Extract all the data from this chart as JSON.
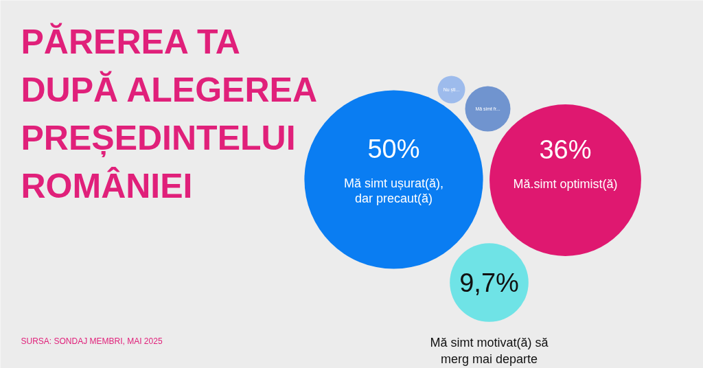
{
  "chart_data": {
    "type": "other",
    "title": "PĂREREA TA DUPĂ ALEGEREA PREȘEDINTELUI ROMÂNIEI",
    "categories": [
      "Mă simt ușurat(ă), dar precaut(ă)",
      "Mă.simt optimist(ă)",
      "Mă simt motivat(ă) să merg mai departe",
      "Mă simt fr...",
      "Nu ști..."
    ],
    "values": [
      50,
      36,
      9.7,
      null,
      null
    ],
    "value_labels": [
      "50%",
      "36%",
      "9,7%",
      null,
      null
    ],
    "colors": [
      "#0a7df2",
      "#df1870",
      "#6fe3e6",
      "#7094cf",
      "#9dbbec"
    ],
    "annotations": [
      "SURSA: SONDAJ MEMBRI, MAI 2025"
    ]
  }
}
